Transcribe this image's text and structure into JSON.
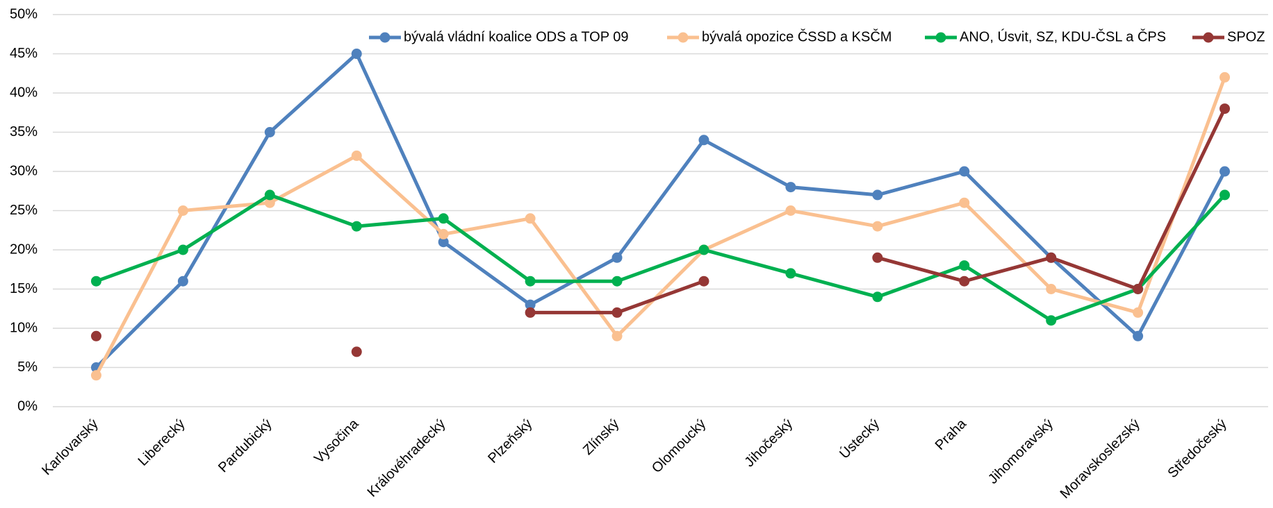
{
  "chart_data": {
    "type": "line",
    "categories": [
      "Karlovarský",
      "Liberecký",
      "Pardubický",
      "Vysočina",
      "Královéhradecký",
      "Plzeňský",
      "Zlínský",
      "Olomoucký",
      "Jihočeský",
      "Ústecký",
      "Praha",
      "Jihomoravský",
      "Moravskoslezský",
      "Středočeský"
    ],
    "series": [
      {
        "name": "bývalá vládní koalice ODS a TOP 09",
        "color": "#4f81bd",
        "values": [
          5,
          16,
          35,
          45,
          21,
          13,
          19,
          34,
          28,
          27,
          30,
          19,
          9,
          30
        ]
      },
      {
        "name": "bývalá opozice ČSSD a KSČM",
        "color": "#fac090",
        "values": [
          4,
          25,
          26,
          32,
          22,
          24,
          9,
          20,
          25,
          23,
          26,
          15,
          12,
          42
        ]
      },
      {
        "name": "ANO, Úsvit, SZ, KDU-ČSL a ČPS",
        "color": "#00b050",
        "values": [
          16,
          20,
          27,
          23,
          24,
          16,
          16,
          20,
          17,
          14,
          18,
          11,
          15,
          27
        ]
      },
      {
        "name": "SPOZ",
        "color": "#953735",
        "values": [
          9,
          null,
          null,
          7,
          null,
          12,
          12,
          16,
          null,
          19,
          16,
          19,
          15,
          38
        ]
      }
    ],
    "ylim": [
      0,
      50
    ],
    "yticks": [
      {
        "value": 0,
        "label": "0%"
      },
      {
        "value": 5,
        "label": "5%"
      },
      {
        "value": 10,
        "label": "10%"
      },
      {
        "value": 15,
        "label": "15%"
      },
      {
        "value": 20,
        "label": "20%"
      },
      {
        "value": 25,
        "label": "25%"
      },
      {
        "value": 30,
        "label": "30%"
      },
      {
        "value": 35,
        "label": "35%"
      },
      {
        "value": 40,
        "label": "40%"
      },
      {
        "value": 45,
        "label": "45%"
      },
      {
        "value": 50,
        "label": "50%"
      }
    ],
    "grid": true,
    "legend": "top"
  }
}
